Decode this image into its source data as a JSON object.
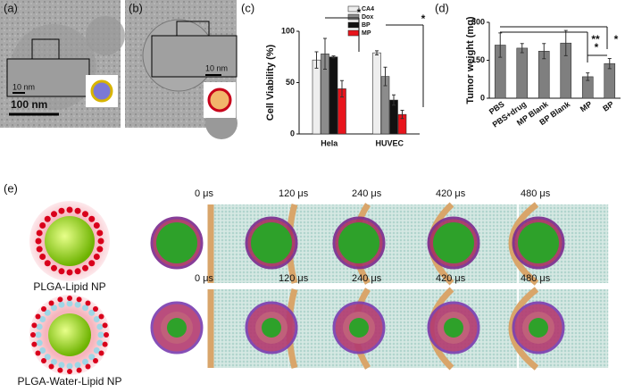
{
  "panels": {
    "a": {
      "label": "(a)",
      "scale_inset": "10 nm",
      "scale_bar": "100 nm"
    },
    "b": {
      "label": "(b)",
      "scale_inset": "10 nm"
    },
    "e": {
      "label": "(e)",
      "rows": [
        {
          "name": "PLGA-Lipid NP",
          "times": [
            "0 μs",
            "120 μs",
            "240 μs",
            "420 μs",
            "480 μs"
          ]
        },
        {
          "name": "PLGA-Water-Lipid NP",
          "times": [
            "0 μs",
            "120 μs",
            "240 μs",
            "420 μs",
            "480 μs"
          ]
        }
      ]
    }
  },
  "chart_data": [
    {
      "type": "bar",
      "label": "(c)",
      "ylabel": "Cell Viability (%)",
      "categories": [
        "Hela",
        "HUVEC"
      ],
      "series": [
        {
          "name": "CA4",
          "color": "#eeeeee",
          "values": [
            72,
            79
          ],
          "errors": [
            8,
            2
          ]
        },
        {
          "name": "Dox",
          "color": "#8c8c8c",
          "values": [
            78,
            56
          ],
          "errors": [
            15,
            9
          ]
        },
        {
          "name": "BP",
          "color": "#111111",
          "values": [
            75,
            33
          ],
          "errors": [
            1,
            5
          ]
        },
        {
          "name": "MP",
          "color": "#e8141c",
          "values": [
            44,
            19
          ],
          "errors": [
            8,
            4
          ]
        }
      ],
      "ylim": [
        0,
        100
      ],
      "yticks": [
        0,
        50,
        100
      ],
      "legend": "upper right",
      "annotations": [
        "*",
        "*"
      ]
    },
    {
      "type": "bar",
      "label": "(d)",
      "ylabel": "Tumor weight (mg)",
      "categories": [
        "PBS",
        "PBS+drug",
        "MP Blank",
        "BP Blank",
        "MP",
        "BP"
      ],
      "values": [
        210,
        198,
        186,
        218,
        85,
        137
      ],
      "errors": [
        48,
        18,
        30,
        50,
        15,
        20
      ],
      "color": "#7f7f7f",
      "ylim": [
        0,
        300
      ],
      "yticks": [
        0,
        150,
        300
      ],
      "annotations": [
        "**",
        "*",
        "*"
      ]
    }
  ]
}
